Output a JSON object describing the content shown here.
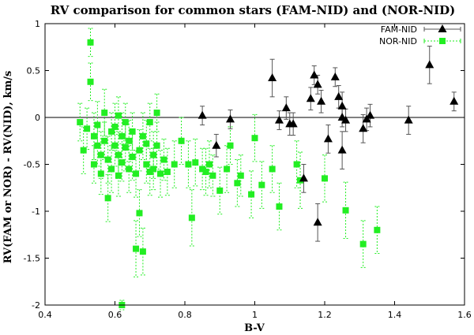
{
  "chart_data": {
    "type": "scatter",
    "title": "RV comparison for common stars (FAM-NID) and (NOR-NID)",
    "xlabel": "B-V",
    "ylabel": "RV(FAM or NOR) - RV(NID), km/s",
    "xlim": [
      0.4,
      1.6
    ],
    "ylim": [
      -2,
      1
    ],
    "xticks": [
      0.4,
      0.6,
      0.8,
      1,
      1.2,
      1.4,
      1.6
    ],
    "xtick_labels": [
      "0.4",
      "0.6",
      "0.8",
      "1",
      "1.2",
      "1.4",
      "1.6"
    ],
    "yticks": [
      -2,
      -1.5,
      -1,
      -0.5,
      0,
      0.5,
      1
    ],
    "ytick_labels": [
      "-2",
      "-1.5",
      "-1",
      "-0.5",
      "0",
      "0.5",
      "1"
    ],
    "zero_line": true,
    "legend_position": "top-right",
    "series": [
      {
        "name": "FAM-NID",
        "marker": "triangle",
        "color": "#000000",
        "errorbar_color": "#555555",
        "points": [
          {
            "x": 0.85,
            "y": 0.02,
            "err": 0.1
          },
          {
            "x": 0.89,
            "y": -0.3,
            "err": 0.12
          },
          {
            "x": 0.93,
            "y": -0.02,
            "err": 0.1
          },
          {
            "x": 1.05,
            "y": 0.42,
            "err": 0.2
          },
          {
            "x": 1.07,
            "y": -0.03,
            "err": 0.1
          },
          {
            "x": 1.09,
            "y": 0.1,
            "err": 0.12
          },
          {
            "x": 1.1,
            "y": -0.07,
            "err": 0.12
          },
          {
            "x": 1.11,
            "y": -0.07,
            "err": 0.12
          },
          {
            "x": 1.14,
            "y": -0.65,
            "err": 0.15
          },
          {
            "x": 1.16,
            "y": 0.2,
            "err": 0.12
          },
          {
            "x": 1.17,
            "y": 0.45,
            "err": 0.1
          },
          {
            "x": 1.18,
            "y": -1.12,
            "err": 0.2
          },
          {
            "x": 1.18,
            "y": 0.35,
            "err": 0.1
          },
          {
            "x": 1.19,
            "y": 0.17,
            "err": 0.12
          },
          {
            "x": 1.21,
            "y": -0.23,
            "err": 0.15
          },
          {
            "x": 1.23,
            "y": 0.43,
            "err": 0.1
          },
          {
            "x": 1.24,
            "y": 0.22,
            "err": 0.12
          },
          {
            "x": 1.25,
            "y": 0.12,
            "err": 0.15
          },
          {
            "x": 1.25,
            "y": 0.0,
            "err": 0.1
          },
          {
            "x": 1.25,
            "y": -0.35,
            "err": 0.2
          },
          {
            "x": 1.26,
            "y": -0.03,
            "err": 0.12
          },
          {
            "x": 1.31,
            "y": -0.12,
            "err": 0.15
          },
          {
            "x": 1.32,
            "y": -0.02,
            "err": 0.12
          },
          {
            "x": 1.33,
            "y": 0.02,
            "err": 0.12
          },
          {
            "x": 1.44,
            "y": -0.03,
            "err": 0.15
          },
          {
            "x": 1.5,
            "y": 0.56,
            "err": 0.2
          },
          {
            "x": 1.57,
            "y": 0.17,
            "err": 0.1
          }
        ]
      },
      {
        "name": "NOR-NID",
        "marker": "square",
        "color": "#22ee22",
        "errorbar_color": "#22ee22",
        "points": [
          {
            "x": 0.5,
            "y": -0.05,
            "err": 0.2
          },
          {
            "x": 0.51,
            "y": -0.35,
            "err": 0.25
          },
          {
            "x": 0.52,
            "y": -0.12,
            "err": 0.22
          },
          {
            "x": 0.53,
            "y": 0.8,
            "err": 0.15
          },
          {
            "x": 0.53,
            "y": 0.38,
            "err": 0.2
          },
          {
            "x": 0.54,
            "y": -0.2,
            "err": 0.25
          },
          {
            "x": 0.54,
            "y": -0.5,
            "err": 0.2
          },
          {
            "x": 0.55,
            "y": -0.3,
            "err": 0.22
          },
          {
            "x": 0.55,
            "y": -0.08,
            "err": 0.25
          },
          {
            "x": 0.56,
            "y": -0.4,
            "err": 0.25
          },
          {
            "x": 0.56,
            "y": -0.6,
            "err": 0.22
          },
          {
            "x": 0.57,
            "y": 0.05,
            "err": 0.25
          },
          {
            "x": 0.57,
            "y": -0.25,
            "err": 0.2
          },
          {
            "x": 0.58,
            "y": -0.86,
            "err": 0.25
          },
          {
            "x": 0.58,
            "y": -0.45,
            "err": 0.25
          },
          {
            "x": 0.59,
            "y": -0.15,
            "err": 0.2
          },
          {
            "x": 0.59,
            "y": -0.55,
            "err": 0.25
          },
          {
            "x": 0.6,
            "y": -0.3,
            "err": 0.22
          },
          {
            "x": 0.6,
            "y": -0.1,
            "err": 0.25
          },
          {
            "x": 0.61,
            "y": 0.02,
            "err": 0.2
          },
          {
            "x": 0.61,
            "y": -0.4,
            "err": 0.25
          },
          {
            "x": 0.61,
            "y": -0.62,
            "err": 0.22
          },
          {
            "x": 0.62,
            "y": -2.0,
            "err": 0.05
          },
          {
            "x": 0.62,
            "y": -0.2,
            "err": 0.25
          },
          {
            "x": 0.62,
            "y": -0.48,
            "err": 0.2
          },
          {
            "x": 0.63,
            "y": -0.32,
            "err": 0.25
          },
          {
            "x": 0.63,
            "y": -0.05,
            "err": 0.2
          },
          {
            "x": 0.64,
            "y": -0.55,
            "err": 0.25
          },
          {
            "x": 0.64,
            "y": -0.25,
            "err": 0.22
          },
          {
            "x": 0.65,
            "y": -0.42,
            "err": 0.25
          },
          {
            "x": 0.65,
            "y": -0.15,
            "err": 0.2
          },
          {
            "x": 0.66,
            "y": -1.4,
            "err": 0.3
          },
          {
            "x": 0.66,
            "y": -0.6,
            "err": 0.25
          },
          {
            "x": 0.67,
            "y": -1.02,
            "err": 0.25
          },
          {
            "x": 0.67,
            "y": -0.35,
            "err": 0.22
          },
          {
            "x": 0.68,
            "y": -1.43,
            "err": 0.25
          },
          {
            "x": 0.68,
            "y": -0.2,
            "err": 0.25
          },
          {
            "x": 0.69,
            "y": -0.5,
            "err": 0.2
          },
          {
            "x": 0.69,
            "y": -0.28,
            "err": 0.25
          },
          {
            "x": 0.7,
            "y": -0.58,
            "err": 0.25
          },
          {
            "x": 0.7,
            "y": -0.05,
            "err": 0.2
          },
          {
            "x": 0.71,
            "y": -0.4,
            "err": 0.25
          },
          {
            "x": 0.71,
            "y": -0.55,
            "err": 0.22
          },
          {
            "x": 0.72,
            "y": 0.05,
            "err": 0.2
          },
          {
            "x": 0.72,
            "y": -0.3,
            "err": 0.25
          },
          {
            "x": 0.73,
            "y": -0.6,
            "err": 0.25
          },
          {
            "x": 0.74,
            "y": -0.45,
            "err": 0.22
          },
          {
            "x": 0.75,
            "y": -0.58,
            "err": 0.25
          },
          {
            "x": 0.77,
            "y": -0.5,
            "err": 0.25
          },
          {
            "x": 0.79,
            "y": -0.25,
            "err": 0.25
          },
          {
            "x": 0.81,
            "y": -0.5,
            "err": 0.25
          },
          {
            "x": 0.82,
            "y": -1.07,
            "err": 0.3
          },
          {
            "x": 0.83,
            "y": -0.48,
            "err": 0.25
          },
          {
            "x": 0.85,
            "y": -0.55,
            "err": 0.22
          },
          {
            "x": 0.86,
            "y": -0.58,
            "err": 0.25
          },
          {
            "x": 0.87,
            "y": -0.5,
            "err": 0.25
          },
          {
            "x": 0.88,
            "y": -0.62,
            "err": 0.22
          },
          {
            "x": 0.9,
            "y": -0.78,
            "err": 0.25
          },
          {
            "x": 0.92,
            "y": -0.55,
            "err": 0.25
          },
          {
            "x": 0.93,
            "y": -0.3,
            "err": 0.2
          },
          {
            "x": 0.95,
            "y": -0.7,
            "err": 0.25
          },
          {
            "x": 0.96,
            "y": -0.62,
            "err": 0.22
          },
          {
            "x": 0.99,
            "y": -0.82,
            "err": 0.25
          },
          {
            "x": 1.0,
            "y": -0.22,
            "err": 0.25
          },
          {
            "x": 1.02,
            "y": -0.72,
            "err": 0.25
          },
          {
            "x": 1.05,
            "y": -0.55,
            "err": 0.25
          },
          {
            "x": 1.07,
            "y": -0.95,
            "err": 0.25
          },
          {
            "x": 1.12,
            "y": -0.5,
            "err": 0.25
          },
          {
            "x": 1.13,
            "y": -0.67,
            "err": 0.3
          },
          {
            "x": 1.2,
            "y": -0.65,
            "err": 0.25
          },
          {
            "x": 1.26,
            "y": -0.99,
            "err": 0.3
          },
          {
            "x": 1.31,
            "y": -1.35,
            "err": 0.25
          },
          {
            "x": 1.35,
            "y": -1.2,
            "err": 0.25
          }
        ]
      }
    ]
  }
}
